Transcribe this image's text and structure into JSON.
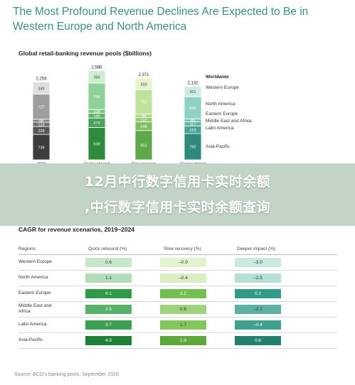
{
  "headline": "The Most Profound Revenue Declines Are Expected to Be in Western Europe and North America",
  "overlay": {
    "line1": "12月中行数字信用卡实时余额",
    "line2": ",中行数字信用卡实时余额查询"
  },
  "source": "Source: BCG's banking pools, September 2020.",
  "chart_data": [
    {
      "type": "bar",
      "stacked": true,
      "title": "Global retail-banking revenue pools ($billions)",
      "categories": [
        "2019",
        "Quick rebound",
        "Slow recovery",
        "Deeper impact"
      ],
      "totals": [
        2254,
        2586,
        2371,
        2132
      ],
      "legend_title": "Worldwide",
      "legend_position": "right",
      "series": [
        {
          "name": "Asia-Pacific",
          "values": [
            739,
            939,
            851,
            762
          ]
        },
        {
          "name": "Latin America",
          "values": [
            228,
            273,
            248,
            223
          ]
        },
        {
          "name": "Middle East and Africa",
          "values": [
            123,
            140,
            127,
            117
          ]
        },
        {
          "name": "Eastern Europe",
          "values": [
            88,
            108,
            98,
            89
          ]
        },
        {
          "name": "North America",
          "values": [
            727,
            766,
            712,
            640
          ]
        },
        {
          "name": "Western Europe",
          "values": [
            349,
            360,
            333,
            301
          ]
        }
      ],
      "colors": {
        "Asia-Pacific": [
          "#3d3d3d",
          "#2f8a3c",
          "#5ea84a",
          "#2f8a7c"
        ],
        "Latin America": [
          "#575757",
          "#4aa35a",
          "#7fbf62",
          "#4aa394"
        ],
        "Middle East and Africa": [
          "#6f6f6f",
          "#5fb46c",
          "#96cb72",
          "#5fb4a6"
        ],
        "Eastern Europe": [
          "#878787",
          "#78c484",
          "#aad886",
          "#78c4b8"
        ],
        "North America": [
          "#9e9e9e",
          "#8fd19a",
          "#bfe39c",
          "#8fd1c5"
        ],
        "Western Europe": [
          "#dedede",
          "#cfeecf",
          "#e6f4cc",
          "#cfece6"
        ]
      }
    },
    {
      "type": "table",
      "title": "CAGR for revenue scenarios, 2019–2024",
      "columns": [
        "Regions",
        "Quick rebound (%)",
        "Slow recovery (%)",
        "Deeper impact (%)"
      ],
      "rows": [
        {
          "region": "Western Europe",
          "values": [
            "0.6",
            "–0.9",
            "–3.0"
          ],
          "colors": [
            "#c6e8c8",
            "#e4f3cf",
            "#c9e9e1"
          ]
        },
        {
          "region": "North America",
          "values": [
            "1.1",
            "–0.4",
            "–2.5"
          ],
          "colors": [
            "#b1deb6",
            "#d9efc2",
            "#b4e0d5"
          ]
        },
        {
          "region": "Eastern Europe",
          "values": [
            "4.1",
            "2.2",
            "0.1"
          ],
          "colors": [
            "#2f9a48",
            "#74bf4e",
            "#2f9a86"
          ]
        },
        {
          "region": "Middle East and Africa",
          "values": [
            "2.5",
            "0.8",
            "–1.2"
          ],
          "colors": [
            "#58b16a",
            "#9fd27e",
            "#5cb1a0"
          ]
        },
        {
          "region": "Latin America",
          "values": [
            "3.7",
            "1.7",
            "–0.4"
          ],
          "colors": [
            "#3ba152",
            "#84c75b",
            "#3ea18e"
          ]
        },
        {
          "region": "Asia-Pacific",
          "values": [
            "4.9",
            "2.9",
            "0.6"
          ],
          "colors": [
            "#1e8138",
            "#5ea83a",
            "#237f6e"
          ]
        }
      ]
    }
  ]
}
